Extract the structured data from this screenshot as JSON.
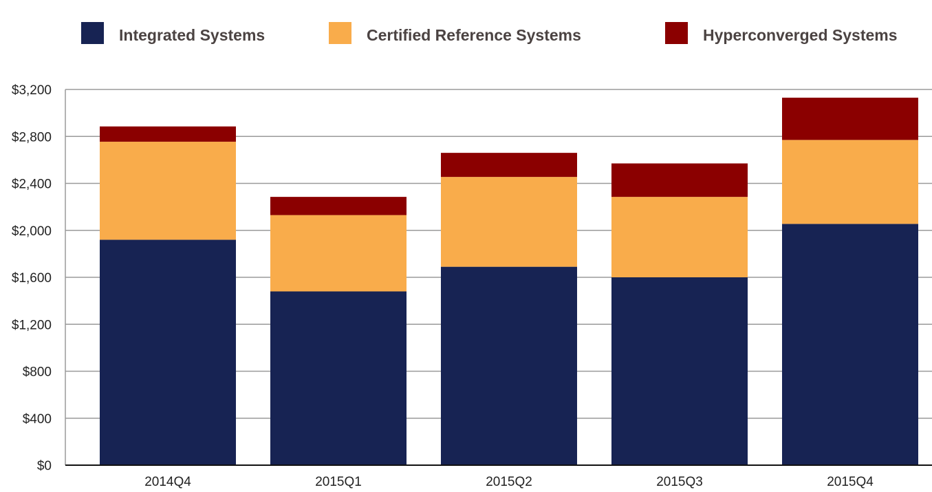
{
  "chart_data": {
    "type": "bar",
    "stacked": true,
    "categories": [
      "2014Q4",
      "2015Q1",
      "2015Q2",
      "2015Q3",
      "2015Q4"
    ],
    "series": [
      {
        "name": "Integrated Systems",
        "color": "#172353",
        "values": [
          1920,
          1480,
          1690,
          1600,
          2055
        ]
      },
      {
        "name": "Certified Reference Systems",
        "color": "#f9ac4b",
        "values": [
          835,
          650,
          765,
          685,
          715
        ]
      },
      {
        "name": "Hyperconverged Systems",
        "color": "#8b0000",
        "values": [
          130,
          155,
          205,
          285,
          360
        ]
      }
    ],
    "ylim": [
      0,
      3200
    ],
    "yticks": [
      0,
      400,
      800,
      1200,
      1600,
      2000,
      2400,
      2800,
      3200
    ],
    "ytick_labels": [
      "$0",
      "$400",
      "$800",
      "$1,200",
      "$1,600",
      "$2,000",
      "$2,400",
      "$2,800",
      "$3,200"
    ],
    "grid": true,
    "legend_position": "top",
    "gridline_color": "#9a9a9a"
  }
}
